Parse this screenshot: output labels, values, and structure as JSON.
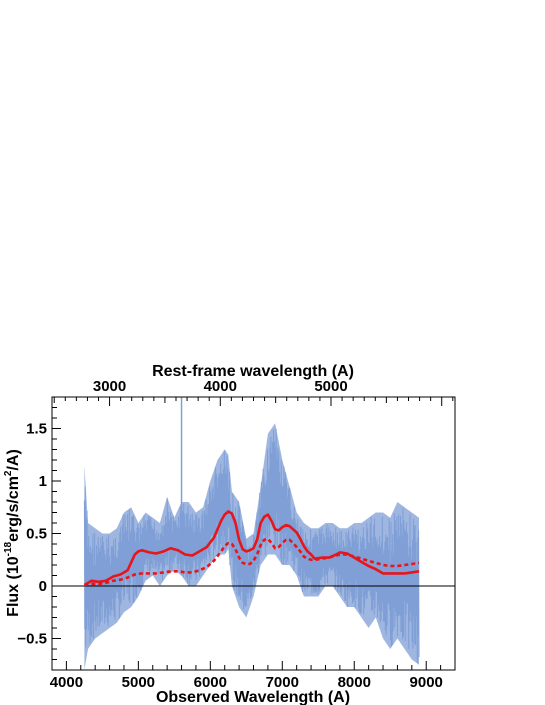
{
  "chart_data": {
    "type": "line",
    "xlabel": "Observed Wavelength (A)",
    "x2label": "Rest-frame wavelength (A)",
    "ylabel": "Flux (10^-18 erg/s/cm^2/A)",
    "ylabel_parts": {
      "a": "Flux (10",
      "b": "-18",
      "c": "erg/s/cm",
      "d": "2",
      "e": "/A)"
    },
    "xlim": [
      3800,
      9400
    ],
    "ylim": [
      -0.8,
      1.8
    ],
    "rest_xlim": [
      2480,
      6120
    ],
    "x_ticks": [
      4000,
      5000,
      6000,
      7000,
      8000,
      9000
    ],
    "x_tick_labels": [
      "4000",
      "5000",
      "6000",
      "7000",
      "8000",
      "9000"
    ],
    "rest_ticks": [
      3000,
      4000,
      5000
    ],
    "rest_tick_labels": [
      "3000",
      "4000",
      "5000"
    ],
    "y_ticks": [
      -0.5,
      0,
      0.5,
      1,
      1.5
    ],
    "y_tick_labels": [
      "−0.5",
      "0",
      "0.5",
      "1",
      "1.5"
    ],
    "zero_line": true,
    "series": [
      {
        "style": "band",
        "color": "#7f9fd6",
        "x": [
          4250,
          4300,
          4400,
          4500,
          4600,
          4700,
          4800,
          4900,
          5000,
          5100,
          5200,
          5300,
          5400,
          5500,
          5600,
          5700,
          5800,
          5900,
          6000,
          6100,
          6200,
          6250,
          6300,
          6400,
          6500,
          6600,
          6700,
          6800,
          6900,
          7000,
          7100,
          7200,
          7300,
          7400,
          7500,
          7600,
          7700,
          7800,
          7900,
          8000,
          8100,
          8200,
          8300,
          8400,
          8500,
          8600,
          8700,
          8800,
          8900
        ],
        "lo": [
          -0.8,
          -0.6,
          -0.5,
          -0.45,
          -0.4,
          -0.35,
          -0.25,
          -0.2,
          -0.1,
          0.05,
          0.1,
          0.0,
          0.1,
          0.15,
          0.1,
          0.0,
          0.0,
          0.1,
          0.2,
          0.3,
          0.3,
          0.35,
          0.0,
          -0.2,
          -0.3,
          -0.1,
          0.2,
          0.3,
          0.3,
          0.2,
          0.2,
          0.1,
          -0.1,
          -0.1,
          -0.1,
          0.0,
          0.0,
          -0.1,
          -0.2,
          -0.2,
          -0.3,
          -0.4,
          -0.3,
          -0.5,
          -0.6,
          -0.5,
          -0.6,
          -0.7,
          -0.75
        ],
        "hi": [
          1.15,
          0.6,
          0.55,
          0.5,
          0.5,
          0.55,
          0.7,
          0.75,
          0.6,
          0.7,
          0.65,
          0.6,
          0.85,
          0.65,
          0.8,
          0.8,
          0.7,
          0.75,
          1.0,
          1.2,
          1.3,
          1.25,
          0.9,
          0.8,
          0.45,
          0.5,
          0.95,
          1.45,
          1.55,
          1.2,
          0.95,
          0.7,
          0.6,
          0.55,
          0.55,
          0.6,
          0.6,
          0.55,
          0.55,
          0.6,
          0.6,
          0.65,
          0.7,
          0.7,
          0.65,
          0.8,
          0.75,
          0.7,
          0.65
        ]
      },
      {
        "style": "solid",
        "color": "#e8151b",
        "x": [
          4250,
          4350,
          4450,
          4550,
          4650,
          4750,
          4850,
          4950,
          5000,
          5050,
          5150,
          5250,
          5350,
          5450,
          5550,
          5650,
          5750,
          5850,
          5950,
          6050,
          6150,
          6200,
          6250,
          6300,
          6350,
          6400,
          6450,
          6500,
          6550,
          6600,
          6650,
          6700,
          6750,
          6800,
          6850,
          6900,
          6950,
          7000,
          7050,
          7100,
          7150,
          7200,
          7250,
          7300,
          7350,
          7400,
          7450,
          7550,
          7650,
          7750,
          7800,
          7900,
          8000,
          8100,
          8200,
          8300,
          8400,
          8500,
          8600,
          8700,
          8800,
          8900
        ],
        "y": [
          0.01,
          0.05,
          0.04,
          0.05,
          0.09,
          0.11,
          0.15,
          0.3,
          0.33,
          0.34,
          0.32,
          0.31,
          0.33,
          0.36,
          0.34,
          0.3,
          0.29,
          0.33,
          0.37,
          0.46,
          0.62,
          0.68,
          0.71,
          0.69,
          0.6,
          0.44,
          0.35,
          0.33,
          0.34,
          0.36,
          0.44,
          0.6,
          0.66,
          0.68,
          0.62,
          0.54,
          0.53,
          0.56,
          0.58,
          0.57,
          0.54,
          0.51,
          0.45,
          0.38,
          0.33,
          0.3,
          0.26,
          0.27,
          0.27,
          0.3,
          0.32,
          0.31,
          0.27,
          0.23,
          0.19,
          0.16,
          0.12,
          0.12,
          0.12,
          0.12,
          0.13,
          0.14
        ]
      },
      {
        "style": "dashed",
        "color": "#e8151b",
        "x": [
          4250,
          4350,
          4450,
          4550,
          4650,
          4750,
          4850,
          4950,
          5050,
          5150,
          5250,
          5350,
          5450,
          5550,
          5650,
          5750,
          5850,
          5950,
          6050,
          6150,
          6200,
          6250,
          6300,
          6350,
          6400,
          6450,
          6500,
          6550,
          6600,
          6650,
          6700,
          6750,
          6800,
          6850,
          6900,
          6950,
          7000,
          7050,
          7100,
          7150,
          7200,
          7250,
          7300,
          7350,
          7400,
          7450,
          7550,
          7650,
          7750,
          7800,
          7900,
          8000,
          8100,
          8200,
          8300,
          8400,
          8500,
          8600,
          8700,
          8800,
          8900
        ],
        "y": [
          0.01,
          0.02,
          0.02,
          0.03,
          0.05,
          0.06,
          0.08,
          0.11,
          0.12,
          0.12,
          0.12,
          0.13,
          0.14,
          0.14,
          0.13,
          0.13,
          0.15,
          0.18,
          0.24,
          0.33,
          0.38,
          0.41,
          0.4,
          0.35,
          0.27,
          0.22,
          0.21,
          0.21,
          0.24,
          0.3,
          0.39,
          0.44,
          0.45,
          0.41,
          0.36,
          0.37,
          0.41,
          0.44,
          0.44,
          0.41,
          0.37,
          0.33,
          0.28,
          0.26,
          0.25,
          0.25,
          0.26,
          0.27,
          0.29,
          0.3,
          0.3,
          0.28,
          0.26,
          0.24,
          0.22,
          0.2,
          0.19,
          0.19,
          0.2,
          0.21,
          0.22
        ]
      }
    ]
  }
}
